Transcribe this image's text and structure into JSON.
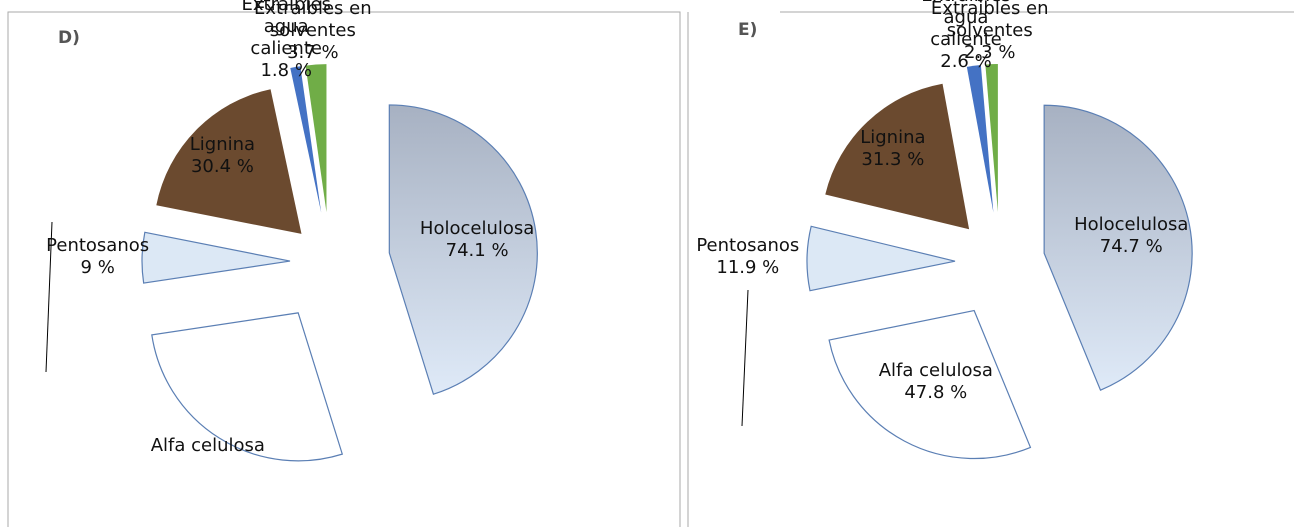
{
  "chart_data": [
    {
      "type": "pie",
      "title": "D)",
      "categories": [
        "Holocelulosa",
        "Alfa celulosa",
        "Pentosanos",
        "Lignina",
        "Extraíbles agua caliente",
        "Extraíbles en solventes"
      ],
      "values": [
        74.1,
        45,
        9,
        30.4,
        1.8,
        3.7
      ],
      "value_labels": [
        "74.1 %",
        null,
        "9 %",
        "30.4 %",
        "1.8 %",
        "3.7 %"
      ],
      "colors": [
        "#b8c4d6",
        "#ffffff",
        "#dce8f5",
        "#6b4a2f",
        "#4472c4",
        "#70ad47"
      ]
    },
    {
      "type": "pie",
      "title": "E)",
      "categories": [
        "Holocelulosa",
        "Alfa celulosa",
        "Pentosanos",
        "Lignina",
        "Extraibles agua caliente",
        "Extraibles en solventes"
      ],
      "values": [
        74.7,
        47.8,
        11.9,
        31.3,
        2.6,
        2.3
      ],
      "value_labels": [
        "74.7 %",
        "47.8 %",
        "11.9 %",
        "31.3 %",
        "2.6 %",
        "2.3 %"
      ],
      "colors": [
        "#b8c4d6",
        "#ffffff",
        "#dce8f5",
        "#6b4a2f",
        "#4472c4",
        "#70ad47"
      ]
    }
  ]
}
